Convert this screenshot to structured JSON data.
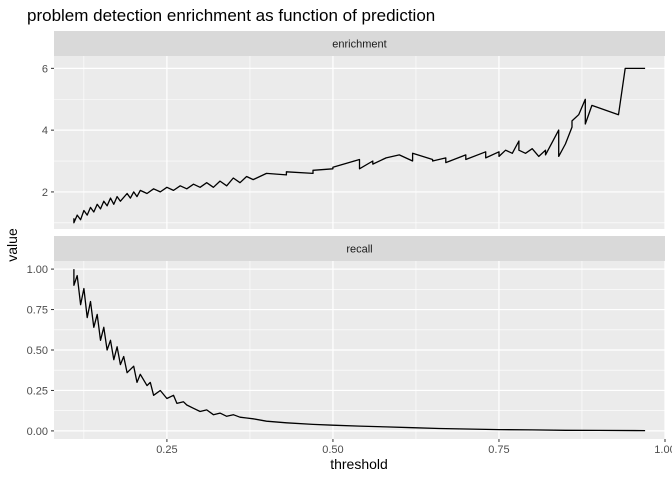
{
  "chart_data": {
    "type": "line",
    "title": "problem detection enrichment as function of prediction",
    "xlabel": "threshold",
    "ylabel": "value",
    "xlim": [
      0.08,
      1.0
    ],
    "xticks": [
      0.25,
      0.5,
      0.75,
      1.0
    ],
    "xtick_labels": [
      "0.25",
      "0.50",
      "0.75",
      "1.00"
    ],
    "grid": true,
    "panels": [
      {
        "strip": "enrichment",
        "ylim": [
          0.8,
          6.4
        ],
        "yticks": [
          2,
          4,
          6
        ],
        "ytick_labels": [
          "2",
          "4",
          "6"
        ],
        "x": [
          0.11,
          0.11,
          0.115,
          0.12,
          0.125,
          0.13,
          0.135,
          0.14,
          0.145,
          0.15,
          0.155,
          0.16,
          0.165,
          0.17,
          0.175,
          0.18,
          0.19,
          0.195,
          0.2,
          0.205,
          0.21,
          0.22,
          0.23,
          0.24,
          0.25,
          0.26,
          0.27,
          0.28,
          0.29,
          0.3,
          0.31,
          0.32,
          0.33,
          0.34,
          0.35,
          0.36,
          0.37,
          0.38,
          0.4,
          0.43,
          0.43,
          0.47,
          0.47,
          0.5,
          0.5,
          0.54,
          0.54,
          0.56,
          0.56,
          0.58,
          0.6,
          0.62,
          0.62,
          0.65,
          0.65,
          0.67,
          0.67,
          0.7,
          0.7,
          0.73,
          0.73,
          0.75,
          0.75,
          0.76,
          0.77,
          0.78,
          0.78,
          0.79,
          0.8,
          0.81,
          0.82,
          0.82,
          0.84,
          0.84,
          0.85,
          0.86,
          0.86,
          0.87,
          0.88,
          0.88,
          0.89,
          0.93,
          0.94,
          0.97
        ],
        "values": [
          1.15,
          1.0,
          1.25,
          1.1,
          1.4,
          1.25,
          1.5,
          1.35,
          1.6,
          1.45,
          1.7,
          1.55,
          1.8,
          1.6,
          1.85,
          1.7,
          1.95,
          1.8,
          2.0,
          1.85,
          2.05,
          1.95,
          2.1,
          2.0,
          2.15,
          2.05,
          2.2,
          2.1,
          2.25,
          2.15,
          2.3,
          2.15,
          2.35,
          2.2,
          2.45,
          2.3,
          2.5,
          2.4,
          2.6,
          2.55,
          2.65,
          2.6,
          2.7,
          2.75,
          2.8,
          3.05,
          2.75,
          3.0,
          2.9,
          3.1,
          3.2,
          3.0,
          3.25,
          3.05,
          3.0,
          3.1,
          2.95,
          3.2,
          3.05,
          3.3,
          3.1,
          3.3,
          3.15,
          3.35,
          3.25,
          3.65,
          3.35,
          3.25,
          3.4,
          3.15,
          3.35,
          3.2,
          4.0,
          3.15,
          3.55,
          4.1,
          4.3,
          4.5,
          5.0,
          4.2,
          4.8,
          4.5,
          6.0,
          6.0
        ]
      },
      {
        "strip": "recall",
        "ylim": [
          -0.05,
          1.05
        ],
        "yticks": [
          0.0,
          0.25,
          0.5,
          0.75,
          1.0
        ],
        "ytick_labels": [
          "0.00",
          "0.25",
          "0.50",
          "0.75",
          "1.00"
        ],
        "x": [
          0.11,
          0.11,
          0.115,
          0.12,
          0.125,
          0.13,
          0.135,
          0.14,
          0.145,
          0.15,
          0.155,
          0.16,
          0.165,
          0.17,
          0.175,
          0.18,
          0.185,
          0.19,
          0.2,
          0.205,
          0.21,
          0.22,
          0.225,
          0.23,
          0.24,
          0.25,
          0.26,
          0.265,
          0.275,
          0.28,
          0.29,
          0.3,
          0.31,
          0.32,
          0.33,
          0.34,
          0.35,
          0.36,
          0.37,
          0.38,
          0.4,
          0.43,
          0.47,
          0.5,
          0.54,
          0.58,
          0.62,
          0.66,
          0.7,
          0.75,
          0.8,
          0.85,
          0.9,
          0.97
        ],
        "values": [
          1.0,
          0.9,
          0.96,
          0.78,
          0.88,
          0.7,
          0.8,
          0.64,
          0.72,
          0.56,
          0.64,
          0.5,
          0.56,
          0.44,
          0.52,
          0.41,
          0.46,
          0.36,
          0.4,
          0.3,
          0.35,
          0.28,
          0.3,
          0.22,
          0.25,
          0.2,
          0.22,
          0.17,
          0.18,
          0.16,
          0.14,
          0.12,
          0.13,
          0.1,
          0.11,
          0.09,
          0.1,
          0.085,
          0.08,
          0.075,
          0.06,
          0.05,
          0.04,
          0.035,
          0.03,
          0.025,
          0.02,
          0.015,
          0.012,
          0.008,
          0.006,
          0.004,
          0.003,
          0.002
        ]
      }
    ]
  }
}
